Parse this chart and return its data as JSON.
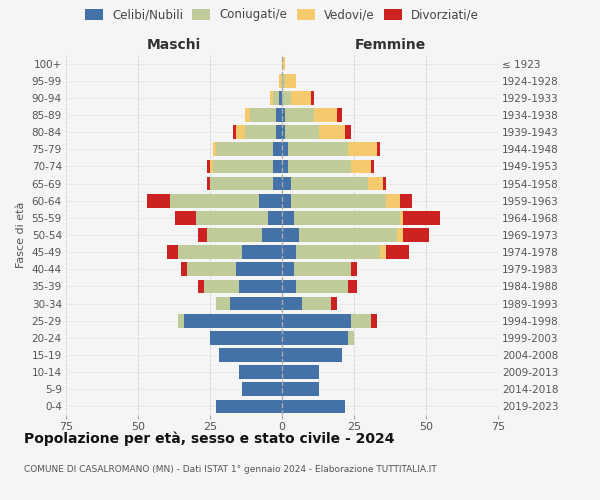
{
  "age_groups": [
    "0-4",
    "5-9",
    "10-14",
    "15-19",
    "20-24",
    "25-29",
    "30-34",
    "35-39",
    "40-44",
    "45-49",
    "50-54",
    "55-59",
    "60-64",
    "65-69",
    "70-74",
    "75-79",
    "80-84",
    "85-89",
    "90-94",
    "95-99",
    "100+"
  ],
  "birth_years": [
    "2019-2023",
    "2014-2018",
    "2009-2013",
    "2004-2008",
    "1999-2003",
    "1994-1998",
    "1989-1993",
    "1984-1988",
    "1979-1983",
    "1974-1978",
    "1969-1973",
    "1964-1968",
    "1959-1963",
    "1954-1958",
    "1949-1953",
    "1944-1948",
    "1939-1943",
    "1934-1938",
    "1929-1933",
    "1924-1928",
    "≤ 1923"
  ],
  "colors": {
    "celibi": "#4472a8",
    "coniugati": "#bfcc99",
    "vedovi": "#f5c96e",
    "divorziati": "#cc2222"
  },
  "maschi": {
    "celibi": [
      23,
      14,
      15,
      22,
      25,
      34,
      18,
      15,
      16,
      14,
      7,
      5,
      8,
      3,
      3,
      3,
      2,
      2,
      1,
      0,
      0
    ],
    "coniugati": [
      0,
      0,
      0,
      0,
      0,
      2,
      5,
      12,
      17,
      22,
      19,
      25,
      31,
      22,
      21,
      20,
      11,
      9,
      2,
      0,
      0
    ],
    "vedovi": [
      0,
      0,
      0,
      0,
      0,
      0,
      0,
      0,
      0,
      0,
      0,
      0,
      0,
      0,
      1,
      1,
      3,
      2,
      1,
      1,
      0
    ],
    "divorziati": [
      0,
      0,
      0,
      0,
      0,
      0,
      0,
      2,
      2,
      4,
      3,
      7,
      8,
      1,
      1,
      0,
      1,
      0,
      0,
      0,
      0
    ]
  },
  "femmine": {
    "celibi": [
      22,
      13,
      13,
      21,
      23,
      24,
      7,
      5,
      4,
      5,
      6,
      4,
      3,
      3,
      2,
      2,
      1,
      1,
      0,
      0,
      0
    ],
    "coniugati": [
      0,
      0,
      0,
      0,
      2,
      7,
      10,
      18,
      20,
      29,
      34,
      37,
      33,
      27,
      22,
      21,
      12,
      10,
      3,
      1,
      0
    ],
    "vedovi": [
      0,
      0,
      0,
      0,
      0,
      0,
      0,
      0,
      0,
      2,
      2,
      1,
      5,
      5,
      7,
      10,
      9,
      8,
      7,
      4,
      1
    ],
    "divorziati": [
      0,
      0,
      0,
      0,
      0,
      2,
      2,
      3,
      2,
      8,
      9,
      13,
      4,
      1,
      1,
      1,
      2,
      2,
      1,
      0,
      0
    ]
  },
  "title": "Popolazione per età, sesso e stato civile - 2024",
  "subtitle": "COMUNE DI CASALROMANO (MN) - Dati ISTAT 1° gennaio 2024 - Elaborazione TUTTITALIA.IT",
  "legend_labels": [
    "Celibi/Nubili",
    "Coniugati/e",
    "Vedovi/e",
    "Divorziati/e"
  ],
  "xlim": 75,
  "background_color": "#f5f5f5",
  "grid_color": "#cccccc"
}
